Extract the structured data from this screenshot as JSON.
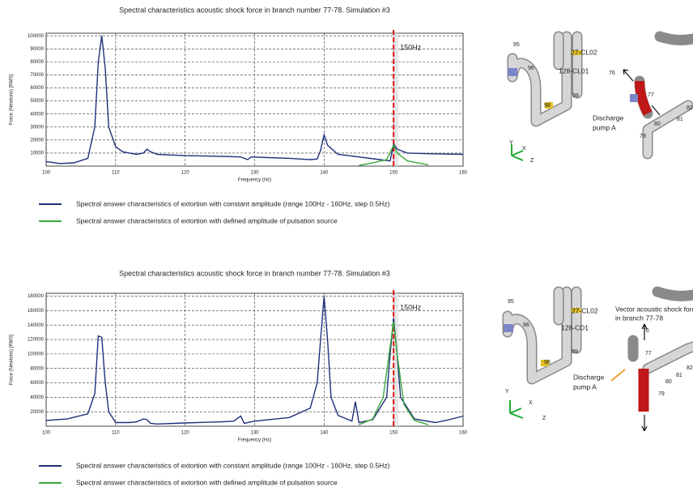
{
  "chart_data": [
    {
      "type": "line",
      "title": "Spectral characteristics acoustic shock force in branch number 77-78. Simulation #3",
      "x_label": "Frequency (Hz)",
      "y_label": "Force (Newtons) [RMS]",
      "xlim": [
        100,
        160
      ],
      "xticks": [
        100,
        110,
        120,
        130,
        140,
        150,
        160
      ],
      "ylim": [
        0,
        102000
      ],
      "yticks": [
        10000,
        20000,
        30000,
        40000,
        50000,
        60000,
        70000,
        80000,
        90000,
        100000
      ],
      "grid": true,
      "vline": {
        "x": 150,
        "label": "150Hz",
        "color": "#e01010"
      },
      "series": [
        {
          "name": "Spectral answer characteristics of extortion with constant amplitude (range 100Hz - 160Hz, step 0.5Hz)",
          "color": "#1f2f7a",
          "x": [
            100,
            102,
            104,
            106,
            107,
            107.5,
            108,
            108.5,
            109,
            110,
            111,
            112,
            113,
            114,
            114.5,
            115,
            116,
            118,
            120,
            125,
            128,
            129,
            129.5,
            132,
            135,
            138,
            139,
            139.5,
            140,
            140.5,
            142,
            145,
            148,
            149.5,
            150,
            150.5,
            152,
            155,
            160
          ],
          "values": [
            3500,
            2000,
            2500,
            6000,
            30000,
            80000,
            100000,
            75000,
            30000,
            15000,
            11000,
            10000,
            9000,
            10000,
            13000,
            11000,
            9000,
            8500,
            8000,
            7500,
            7000,
            5000,
            7000,
            6500,
            6000,
            5000,
            5500,
            12000,
            24000,
            16000,
            9000,
            7000,
            5000,
            4000,
            17000,
            13000,
            10000,
            9500,
            9000
          ]
        },
        {
          "name": "Spectral answer characteristics of extortion with defined amplitude of pulsation source",
          "color": "#3aa83a",
          "x": [
            145,
            147,
            149,
            150,
            150.5,
            152,
            155
          ],
          "values": [
            500,
            2500,
            5000,
            16000,
            10000,
            4000,
            1000
          ]
        }
      ]
    },
    {
      "type": "line",
      "title": "Spectral characteristics acoustic shock force in branch number 77-78. Simulation #3",
      "x_label": "Frequency (Hz)",
      "y_label": "Force (Newtons) [RMS]",
      "xlim": [
        100,
        160
      ],
      "xticks": [
        100,
        110,
        120,
        130,
        140,
        150,
        160
      ],
      "ylim": [
        0,
        184000
      ],
      "yticks": [
        20000,
        40000,
        60000,
        80000,
        100000,
        120000,
        140000,
        160000,
        180000
      ],
      "grid": true,
      "vline": {
        "x": 150,
        "label": "150Hz",
        "color": "#e01010"
      },
      "series": [
        {
          "name": "Spectral answer characteristics of extortion with constant amplitude (range 100Hz - 160Hz, step 0.5Hz)",
          "color": "#1f2f7a",
          "x": [
            100,
            103,
            106,
            107,
            107.5,
            108,
            108.5,
            109,
            110,
            112,
            113,
            114,
            114.5,
            115,
            116,
            120,
            125,
            127,
            128,
            128.5,
            130,
            135,
            138,
            139,
            139.5,
            140,
            140.5,
            141,
            142,
            144,
            144.5,
            145,
            147,
            149,
            149.5,
            150,
            150.5,
            151,
            153,
            156,
            158,
            160
          ],
          "values": [
            8000,
            10000,
            17000,
            45000,
            125000,
            123000,
            60000,
            20000,
            5000,
            5000,
            6000,
            10000,
            9000,
            4000,
            3000,
            4500,
            6000,
            7000,
            14000,
            4000,
            7000,
            12000,
            25000,
            60000,
            120000,
            180000,
            120000,
            40000,
            15000,
            7000,
            34000,
            5000,
            9000,
            40000,
            100000,
            150000,
            100000,
            40000,
            10000,
            5000,
            9000,
            14000
          ]
        },
        {
          "name": "Spectral answer characteristics of extortion with defined amplitude of pulsation source",
          "color": "#3aa83a",
          "x": [
            145,
            147,
            148.5,
            149.5,
            150,
            150.5,
            151.5,
            153,
            155
          ],
          "values": [
            2000,
            10000,
            40000,
            110000,
            145000,
            100000,
            30000,
            8000,
            2000
          ]
        }
      ]
    }
  ],
  "illustrations": [
    {
      "labels": [
        "95",
        "96",
        "27-CL02",
        "128-CL01",
        "99",
        "98",
        "Y",
        "X",
        "Z",
        "76",
        "77",
        "Discharge",
        "pump A",
        "79",
        "80",
        "81",
        "82"
      ]
    },
    {
      "labels": [
        "95",
        "96",
        "27-CL02",
        "128-CD1",
        "99",
        "98",
        "Y",
        "X",
        "Z",
        "Vector acoustic shock force",
        "in branch 77-78",
        "76",
        "77",
        "Discharge",
        "pump A",
        "79",
        "80",
        "81",
        "82"
      ]
    }
  ]
}
